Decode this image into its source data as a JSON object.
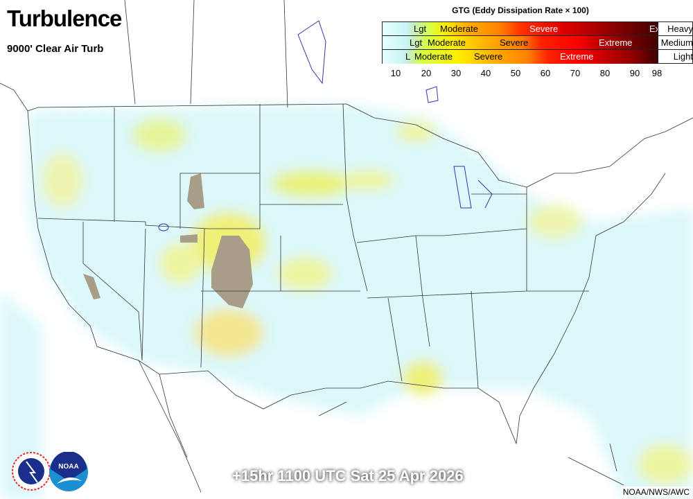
{
  "header": {
    "title": "Turbulence",
    "subtitle": "9000' Clear Air Turb"
  },
  "legend": {
    "title": "GTG (Eddy Dissipation Rate × 100)",
    "rows": [
      {
        "category": "Heavy",
        "labels": [
          "Lgt",
          "Moderate",
          "Severe",
          "Ex"
        ]
      },
      {
        "category": "Medium",
        "labels": [
          "Lgt",
          "Moderate",
          "Severe",
          "Extreme"
        ]
      },
      {
        "category": "Light",
        "labels": [
          "L",
          "Moderate",
          "Severe",
          "Extreme"
        ]
      }
    ],
    "ticks": [
      "10",
      "20",
      "30",
      "40",
      "50",
      "60",
      "70",
      "80",
      "90",
      "98"
    ],
    "colors": [
      "#e6ffff",
      "#c8f5f5",
      "#c8f0c0",
      "#d8ff40",
      "#ffee00",
      "#ffb000",
      "#ff8000",
      "#ff3000",
      "#ff0000",
      "#b00000",
      "#400000"
    ]
  },
  "map": {
    "no_data_color": "#a89e88",
    "land_border_color": "#333333",
    "lake_color": "#3333aa"
  },
  "footer": {
    "valid_time": "+15hr 1100 UTC Sat 25 Apr 2026",
    "credit": "NOAA/NWS/AWC"
  },
  "logos": [
    "NATIONAL WEATHER SERVICE",
    "NOAA"
  ]
}
